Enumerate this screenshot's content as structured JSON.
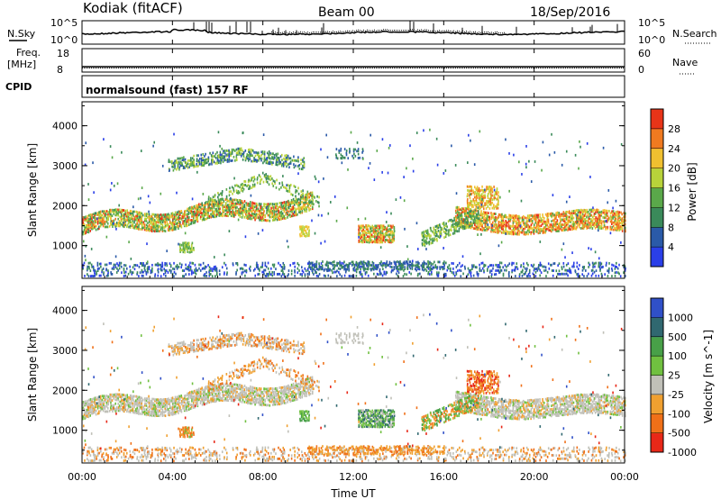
{
  "header": {
    "station": "Kodiak (fitACF)",
    "beam": "Beam 00",
    "date": "18/Sep/2016"
  },
  "panels": {
    "nsky": {
      "label": "N.Sky",
      "ticks": [
        "10^5",
        "10^0"
      ],
      "right_label": "N.Search",
      "right_ticks": [
        "10^5",
        "10^0"
      ]
    },
    "freq": {
      "label_line1": "Freq.",
      "label_line2": "[MHz]",
      "ticks": [
        "18",
        "8"
      ],
      "right_label": "Nave",
      "right_ticks": [
        "60",
        "0"
      ]
    },
    "cpid": {
      "label": "CPID",
      "text": "normalsound (fast) 157 RF"
    }
  },
  "colors": {
    "power": [
      "#2a3fe8",
      "#2a5aa8",
      "#3a8a5a",
      "#5aa84a",
      "#b8d23a",
      "#f0c030",
      "#f07a20",
      "#e83418"
    ],
    "velocity": [
      "#3050c8",
      "#306870",
      "#48a048",
      "#70c040",
      "#c0c0b8",
      "#f0a030",
      "#f07018",
      "#e82818"
    ]
  },
  "chart_data": [
    {
      "type": "heatmap",
      "title": "Power",
      "ylabel": "Slant Range [km]",
      "ylim": [
        180,
        4600
      ],
      "yticks": [
        "1000",
        "2000",
        "3000",
        "4000"
      ],
      "colorbar": {
        "label": "Power [dB]",
        "ticks": [
          "4",
          "8",
          "12",
          "16",
          "20",
          "24",
          "28"
        ]
      }
    },
    {
      "type": "heatmap",
      "title": "Velocity",
      "ylabel": "Slant Range [km]",
      "ylim": [
        180,
        4600
      ],
      "yticks": [
        "1000",
        "2000",
        "3000",
        "4000"
      ],
      "colorbar": {
        "label": "Velocity [m s^-1]",
        "ticks": [
          "1000",
          "500",
          "100",
          "25",
          "-25",
          "-100",
          "-500",
          "-1000"
        ]
      }
    }
  ],
  "xaxis": {
    "label": "Time UT",
    "ticks": [
      "00:00",
      "04:00",
      "08:00",
      "12:00",
      "16:00",
      "20:00",
      "00:00"
    ]
  }
}
